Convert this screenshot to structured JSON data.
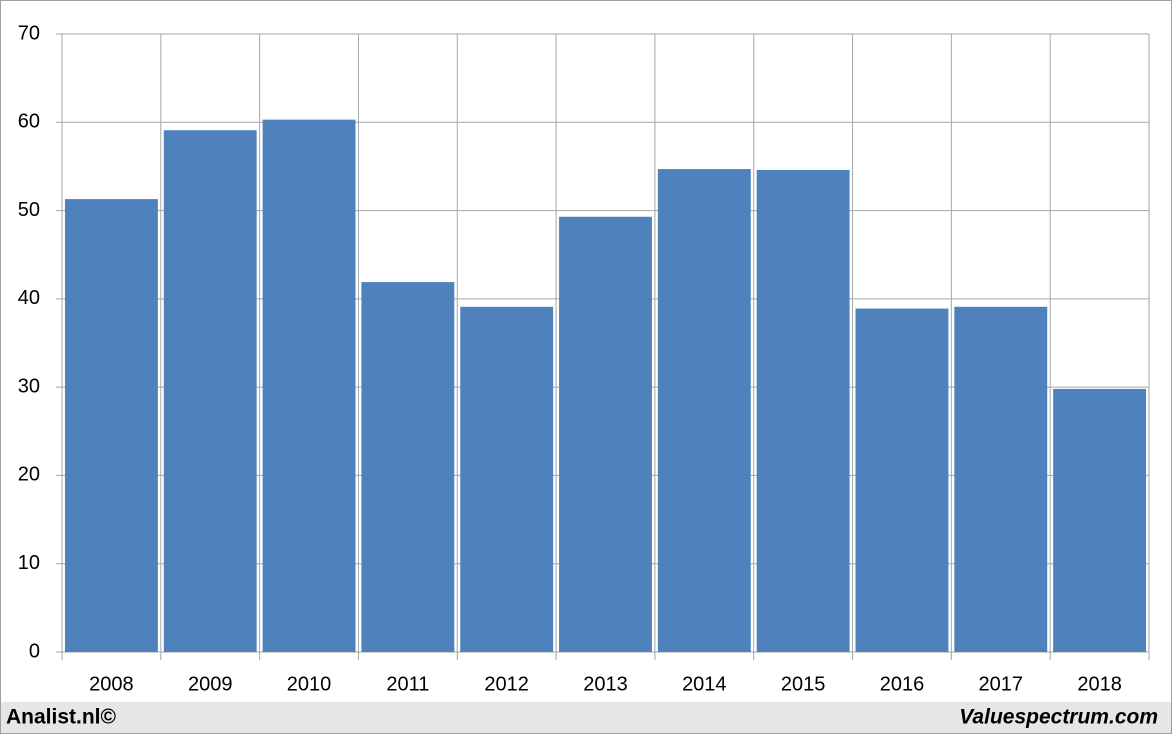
{
  "chart_data": {
    "type": "bar",
    "categories": [
      "2008",
      "2009",
      "2010",
      "2011",
      "2012",
      "2013",
      "2014",
      "2015",
      "2016",
      "2017",
      "2018"
    ],
    "values": [
      51.3,
      59.1,
      60.3,
      41.9,
      39.1,
      49.3,
      54.7,
      54.6,
      38.9,
      39.1,
      29.8
    ],
    "color": "#4f81bd",
    "ylim": [
      0,
      70
    ],
    "yticks": [
      0,
      10,
      20,
      30,
      40,
      50,
      60,
      70
    ],
    "grid": true
  },
  "footer": {
    "left": "Analist.nl©",
    "right": "Valuespectrum.com"
  }
}
